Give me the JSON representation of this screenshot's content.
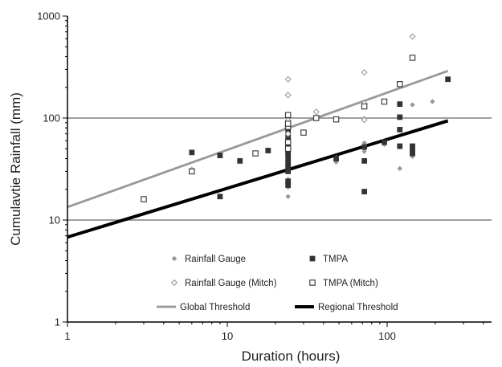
{
  "chart_data": {
    "type": "scatter",
    "xlabel": "Duration (hours)",
    "ylabel": "Cumulavtie Rainfall (mm)",
    "x_scale": "log",
    "y_scale": "log",
    "xlim": [
      1,
      450
    ],
    "ylim": [
      1,
      1000
    ],
    "x_ticks": [
      {
        "value": 1,
        "label": "1"
      },
      {
        "value": 10,
        "label": "10"
      },
      {
        "value": 100,
        "label": "100"
      }
    ],
    "y_ticks": [
      {
        "value": 1,
        "label": "1"
      },
      {
        "value": 10,
        "label": "10"
      },
      {
        "value": 100,
        "label": "100"
      },
      {
        "value": 1000,
        "label": "1000"
      }
    ],
    "gridlines_y": [
      10,
      100
    ],
    "legend_position": "lower-center",
    "series": [
      {
        "name": "Rainfall Gauge",
        "marker": "diamond-filled",
        "color": "#999999",
        "points": [
          [
            24,
            17
          ],
          [
            24,
            21
          ],
          [
            24,
            25
          ],
          [
            24,
            32
          ],
          [
            24,
            38
          ],
          [
            24,
            46
          ],
          [
            48,
            37
          ],
          [
            48,
            41
          ],
          [
            72,
            47
          ],
          [
            72,
            57
          ],
          [
            72,
            99
          ],
          [
            96,
            55
          ],
          [
            120,
            32
          ],
          [
            120,
            52
          ],
          [
            144,
            42
          ],
          [
            144,
            135
          ],
          [
            192,
            145
          ]
        ]
      },
      {
        "name": "TMPA",
        "marker": "square-filled",
        "color": "#333333",
        "points": [
          [
            6,
            46
          ],
          [
            9,
            17
          ],
          [
            9,
            43
          ],
          [
            12,
            38
          ],
          [
            18,
            48
          ],
          [
            24,
            22
          ],
          [
            24,
            24
          ],
          [
            24,
            30
          ],
          [
            24,
            33
          ],
          [
            24,
            36
          ],
          [
            24,
            40
          ],
          [
            24,
            44
          ],
          [
            24,
            47
          ],
          [
            24,
            52
          ],
          [
            24,
            57
          ],
          [
            24,
            65
          ],
          [
            24,
            73
          ],
          [
            48,
            40
          ],
          [
            72,
            19
          ],
          [
            72,
            38
          ],
          [
            72,
            52
          ],
          [
            96,
            58
          ],
          [
            120,
            53
          ],
          [
            120,
            77
          ],
          [
            120,
            102
          ],
          [
            120,
            137
          ],
          [
            144,
            45
          ],
          [
            144,
            49
          ],
          [
            144,
            53
          ],
          [
            240,
            240
          ]
        ]
      },
      {
        "name": "Rainfall Gauge (Mitch)",
        "marker": "diamond-open",
        "color": "#999999",
        "points": [
          [
            6,
            31
          ],
          [
            24,
            70
          ],
          [
            24,
            95
          ],
          [
            24,
            168
          ],
          [
            24,
            240
          ],
          [
            36,
            115
          ],
          [
            72,
            96
          ],
          [
            72,
            140
          ],
          [
            72,
            280
          ],
          [
            144,
            630
          ]
        ]
      },
      {
        "name": "TMPA (Mitch)",
        "marker": "square-open",
        "color": "#333333",
        "points": [
          [
            3,
            16
          ],
          [
            6,
            30
          ],
          [
            15,
            45
          ],
          [
            24,
            50
          ],
          [
            24,
            58
          ],
          [
            24,
            82
          ],
          [
            24,
            88
          ],
          [
            24,
            107
          ],
          [
            30,
            72
          ],
          [
            36,
            100
          ],
          [
            48,
            97
          ],
          [
            72,
            130
          ],
          [
            96,
            145
          ],
          [
            120,
            215
          ],
          [
            144,
            390
          ]
        ]
      },
      {
        "name": "Global Threshold",
        "type": "line",
        "color": "#999999",
        "points": [
          [
            1,
            13.4
          ],
          [
            240,
            290
          ]
        ]
      },
      {
        "name": "Regional Threshold",
        "type": "line",
        "color": "#000000",
        "points": [
          [
            1,
            6.8
          ],
          [
            240,
            94
          ]
        ]
      }
    ]
  }
}
